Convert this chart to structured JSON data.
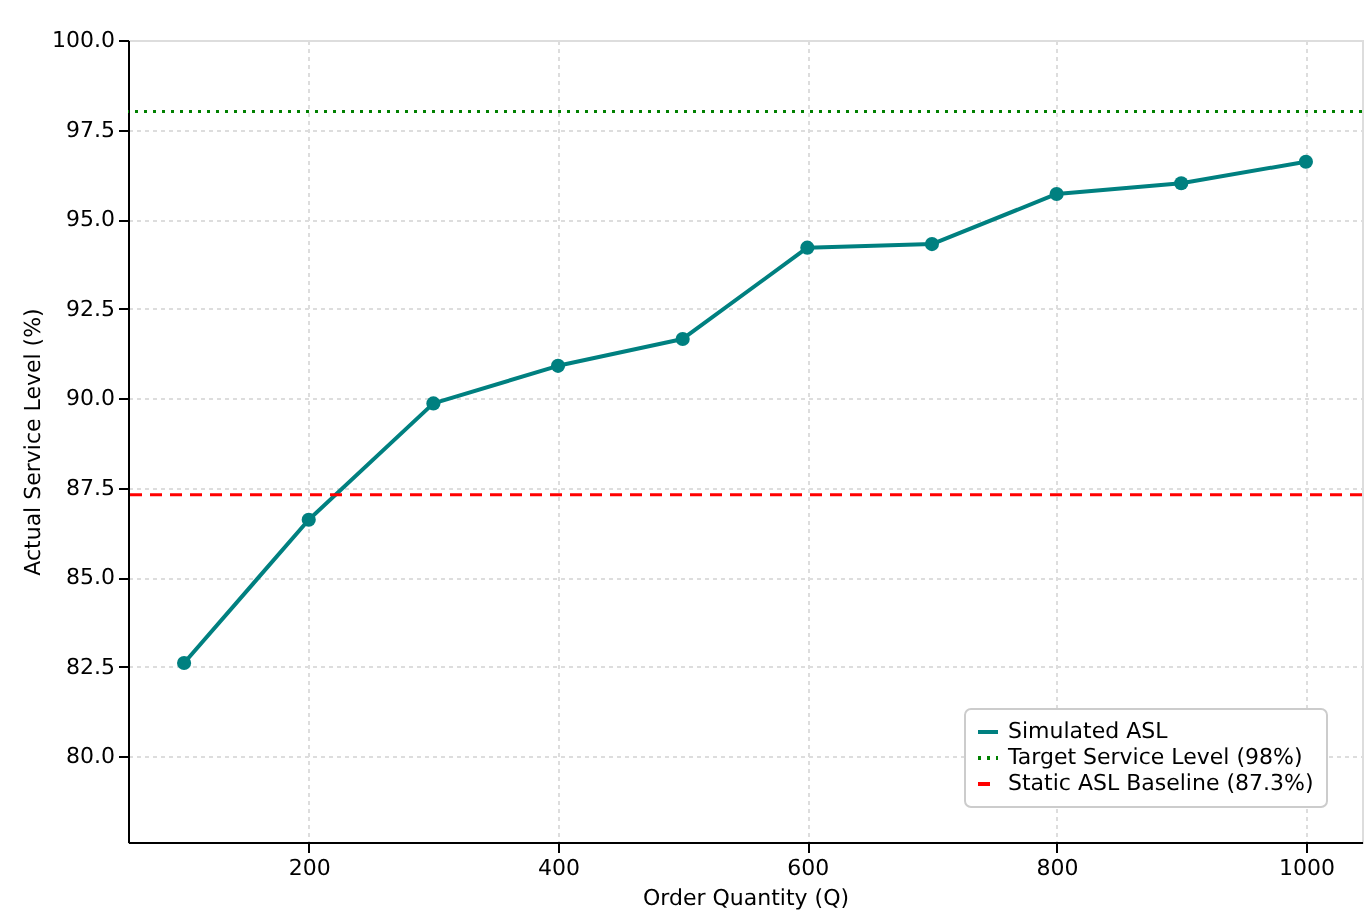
{
  "chart_data": {
    "type": "line",
    "x": [
      100,
      200,
      300,
      400,
      500,
      600,
      700,
      800,
      900,
      1000
    ],
    "series": [
      {
        "name": "Simulated ASL",
        "color": "#008080",
        "values": [
          82.6,
          86.6,
          89.85,
          90.9,
          91.65,
          94.2,
          94.3,
          95.7,
          96.0,
          96.6
        ]
      }
    ],
    "xlabel": "Order Quantity (Q)",
    "ylabel": "Actual Service Level (%)",
    "xlim": [
      55,
      1045
    ],
    "xticks": [
      200,
      400,
      600,
      800,
      1000
    ],
    "ylim": [
      77.6,
      100
    ],
    "yticks": [
      {
        "value": 80,
        "label": "80.0"
      },
      {
        "value": 82.5,
        "label": "82.5"
      },
      {
        "value": 85,
        "label": "85.0"
      },
      {
        "value": 87.5,
        "label": "87.5"
      },
      {
        "value": 90,
        "label": "90.0"
      },
      {
        "value": 92.5,
        "label": "92.5"
      },
      {
        "value": 95,
        "label": "95.0"
      },
      {
        "value": 97.5,
        "label": "97.5"
      },
      {
        "value": 100,
        "label": "100.0"
      }
    ],
    "ref_lines": [
      {
        "axis": "y",
        "value": 98,
        "label": "Target Service Level (98%)",
        "color": "#008000",
        "line_style": "dotted"
      },
      {
        "axis": "y",
        "value": 87.3,
        "label": "Static ASL Baseline (87.3%)",
        "color": "#ff0000",
        "line_style": "dashed"
      }
    ],
    "grid": true,
    "legend": "bottom right",
    "marker": "circle",
    "line_style": "solid"
  }
}
